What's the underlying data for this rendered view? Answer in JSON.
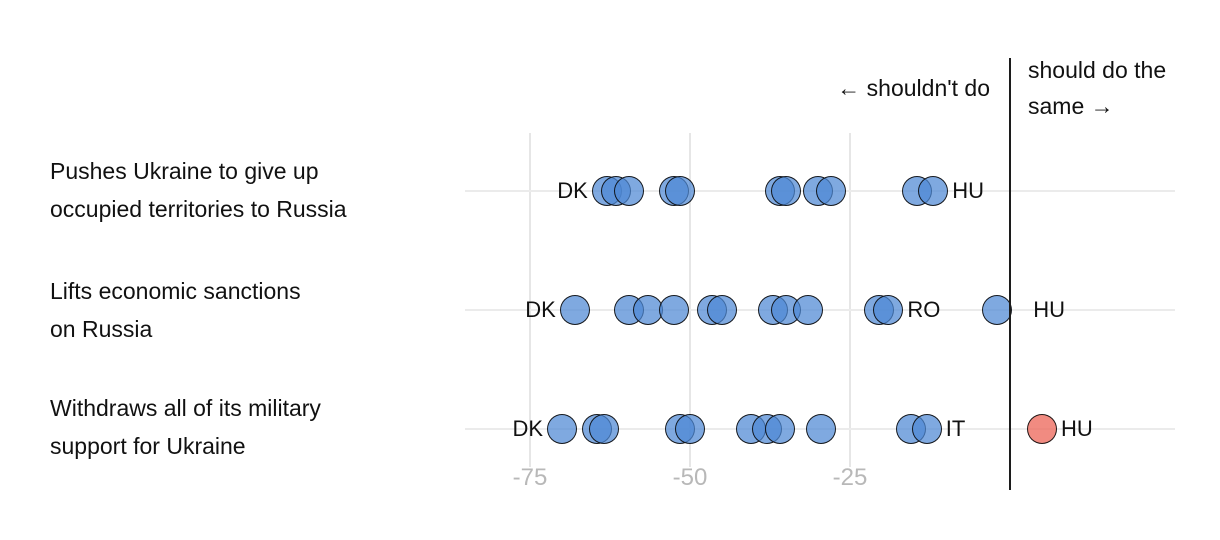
{
  "annotations": {
    "shouldnt": "← shouldn't do",
    "should_line1": "should do the",
    "should_line2": "same →"
  },
  "colors": {
    "dot_default": "#4D88D4",
    "dot_highlight": "#ED6E62",
    "gridline": "#E6E6E6",
    "row_line": "#EBEBEB",
    "zero_line": "#1C1C1C",
    "tick_label": "#B8B8B8",
    "text": "#111111"
  },
  "chart_data": {
    "type": "scatter",
    "title": "",
    "xlabel": "",
    "ylabel": "",
    "x_ticks": [
      -75,
      -50,
      -25
    ],
    "xlim": [
      -85,
      26
    ],
    "zero_divider": 0,
    "grid": true,
    "legend": {
      "left_of_zero": "shouldn't do",
      "right_of_zero": "should do the same"
    },
    "rows": [
      {
        "label": "Pushes Ukraine to give up occupied territories to Russia",
        "label_lines": [
          "Pushes Ukraine to give up",
          "occupied territories to Russia"
        ],
        "points": [
          {
            "value": -63,
            "country": "DK",
            "label_side": "left"
          },
          {
            "value": -61.5
          },
          {
            "value": -59.5
          },
          {
            "value": -52.5
          },
          {
            "value": -51.5
          },
          {
            "value": -36
          },
          {
            "value": -35
          },
          {
            "value": -30
          },
          {
            "value": -28
          },
          {
            "value": -14.5
          },
          {
            "value": -12,
            "country": "HU",
            "label_side": "right"
          }
        ]
      },
      {
        "label": "Lifts economic sanctions on Russia",
        "label_lines": [
          "Lifts economic sanctions",
          "on Russia"
        ],
        "points": [
          {
            "value": -68,
            "country": "DK",
            "label_side": "left"
          },
          {
            "value": -59.5
          },
          {
            "value": -56.5
          },
          {
            "value": -52.5
          },
          {
            "value": -46.5
          },
          {
            "value": -45
          },
          {
            "value": -37
          },
          {
            "value": -35
          },
          {
            "value": -31.5
          },
          {
            "value": -20.5
          },
          {
            "value": -19,
            "country": "RO",
            "label_side": "right"
          },
          {
            "value": -2,
            "country": "HU",
            "label_side": "right",
            "label_dx": 17
          }
        ]
      },
      {
        "label": "Withdraws all of its military support for Ukraine",
        "label_lines": [
          "Withdraws all of its military",
          "support for Ukraine"
        ],
        "points": [
          {
            "value": -70,
            "country": "DK",
            "label_side": "left"
          },
          {
            "value": -64.5
          },
          {
            "value": -63.5
          },
          {
            "value": -51.5
          },
          {
            "value": -50
          },
          {
            "value": -40.5
          },
          {
            "value": -38
          },
          {
            "value": -36
          },
          {
            "value": -29.5
          },
          {
            "value": -15.5
          },
          {
            "value": -13,
            "country": "IT",
            "label_side": "right"
          },
          {
            "value": 5,
            "country": "HU",
            "label_side": "right",
            "highlight": true
          }
        ]
      }
    ]
  }
}
